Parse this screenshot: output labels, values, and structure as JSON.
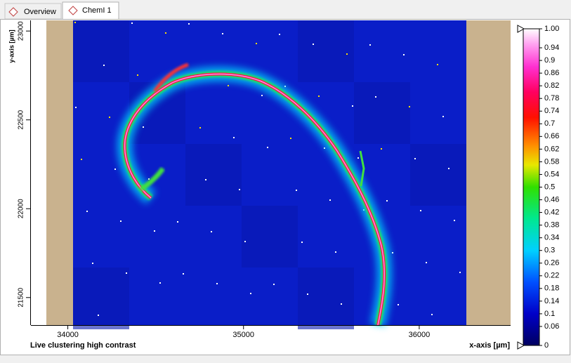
{
  "tabs": [
    "Overview",
    "ChemI 1"
  ],
  "plot": {
    "caption": "Live clustering high contrast",
    "x_label": "x-axis [µm]",
    "y_label": "y-axis [µm]",
    "xlim": [
      33790,
      36520
    ],
    "ylim": [
      21345,
      23060
    ],
    "xticks": [
      34000,
      35000,
      36000
    ],
    "yticks": [
      21500,
      22000,
      22500,
      23000
    ]
  },
  "colorbar": {
    "lim": [
      0,
      1
    ],
    "ticks": [
      0,
      0.06,
      0.1,
      0.14,
      0.18,
      0.22,
      0.26,
      0.3,
      0.34,
      0.38,
      0.42,
      0.46,
      0.5,
      0.54,
      0.58,
      0.62,
      0.66,
      0.7,
      0.74,
      0.78,
      0.82,
      0.86,
      0.9,
      0.94,
      {
        "value": 1,
        "label": "1.00"
      }
    ]
  }
}
